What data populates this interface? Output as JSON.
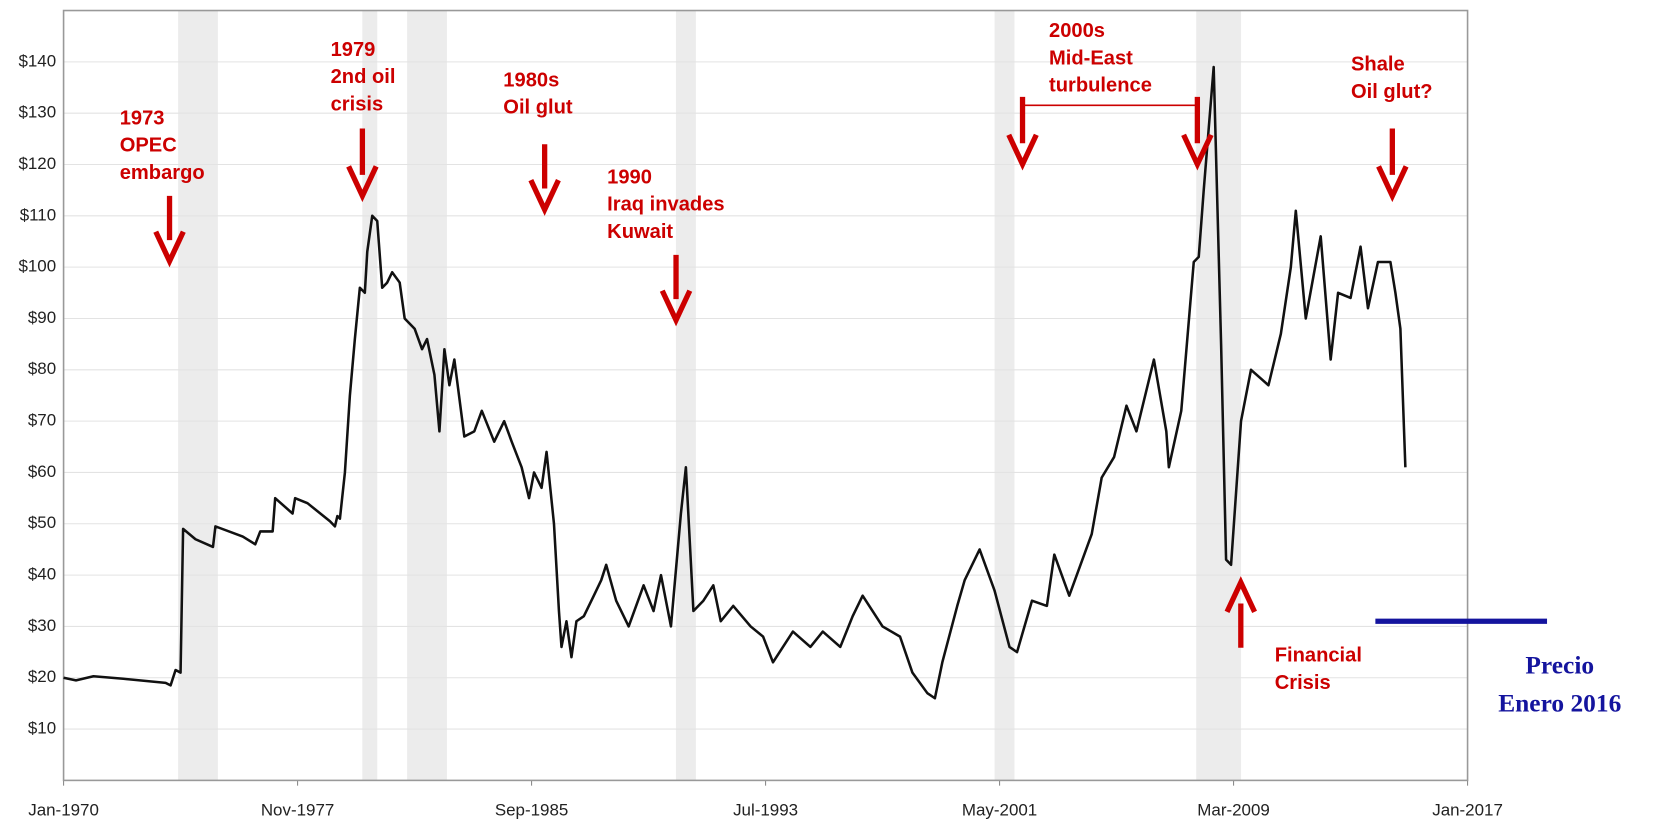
{
  "chart_data": {
    "type": "line",
    "x": [
      "1970-01",
      "1970-06",
      "1971-01",
      "1972-01",
      "1973-06",
      "1973-08",
      "1973-10",
      "1973-12",
      "1974-01",
      "1974-06",
      "1975-01",
      "1975-02",
      "1976-01",
      "1976-06",
      "1976-08",
      "1977-01",
      "1977-02",
      "1977-09",
      "1977-10",
      "1978-03",
      "1978-12",
      "1979-02",
      "1979-03",
      "1979-04",
      "1979-06",
      "1979-08",
      "1979-10",
      "1979-12",
      "1980-02",
      "1980-03",
      "1980-05",
      "1980-07",
      "1980-09",
      "1980-11",
      "1981-01",
      "1981-04",
      "1981-06",
      "1981-10",
      "1982-01",
      "1982-03",
      "1982-06",
      "1982-08",
      "1982-10",
      "1982-12",
      "1983-02",
      "1983-06",
      "1983-10",
      "1984-01",
      "1984-06",
      "1984-10",
      "1985-01",
      "1985-05",
      "1985-08",
      "1985-10",
      "1986-01",
      "1986-03",
      "1986-06",
      "1986-08",
      "1986-09",
      "1986-11",
      "1987-01",
      "1987-03",
      "1987-06",
      "1987-10",
      "1988-01",
      "1988-03",
      "1988-07",
      "1988-12",
      "1989-06",
      "1989-10",
      "1990-01",
      "1990-05",
      "1990-09",
      "1990-11",
      "1991-02",
      "1991-06",
      "1991-10",
      "1992-01",
      "1992-06",
      "1993-01",
      "1993-06",
      "1993-10",
      "1994-06",
      "1995-01",
      "1995-06",
      "1996-01",
      "1996-06",
      "1996-10",
      "1997-06",
      "1998-01",
      "1998-06",
      "1998-12",
      "1999-03",
      "1999-06",
      "1999-12",
      "2000-03",
      "2000-09",
      "2001-03",
      "2001-09",
      "2001-12",
      "2002-06",
      "2002-12",
      "2003-03",
      "2003-09",
      "2004-06",
      "2004-10",
      "2005-03",
      "2005-08",
      "2005-12",
      "2006-07",
      "2006-12",
      "2007-01",
      "2007-06",
      "2007-11",
      "2008-01",
      "2008-03",
      "2008-07",
      "2008-10",
      "2008-12",
      "2009-02",
      "2009-06",
      "2009-10",
      "2010-05",
      "2010-10",
      "2011-02",
      "2011-04",
      "2011-08",
      "2012-02",
      "2012-06",
      "2012-09",
      "2013-02",
      "2013-06",
      "2013-09",
      "2014-01",
      "2014-06",
      "2014-08",
      "2014-10",
      "2014-12"
    ],
    "series": [
      {
        "color": "#111111",
        "values": [
          20,
          19.5,
          20.3,
          19.8,
          19,
          18.5,
          21.5,
          21,
          49,
          47,
          45.5,
          49.5,
          47.5,
          46,
          48.5,
          48.5,
          55,
          52,
          55,
          54,
          50.5,
          49.5,
          51.5,
          51,
          60,
          75,
          86,
          96,
          95,
          103,
          110,
          109,
          96,
          97,
          99,
          97,
          90,
          88,
          84,
          86,
          79,
          68,
          84,
          77,
          82,
          67,
          68,
          72,
          66,
          70,
          66,
          61,
          55,
          60,
          57,
          64,
          50,
          33,
          26,
          31,
          24,
          31,
          32,
          36,
          39,
          42,
          35,
          30,
          38,
          33,
          40,
          30,
          52,
          61,
          33,
          35,
          38,
          31,
          34,
          30,
          28,
          23,
          29,
          26,
          29,
          26,
          32,
          36,
          30,
          28,
          21,
          17,
          16,
          23,
          34,
          39,
          45,
          37,
          26,
          25,
          35,
          34,
          44,
          36,
          48,
          59,
          63,
          73,
          68,
          82,
          68,
          61,
          72,
          101,
          102,
          115,
          139,
          85,
          43,
          42,
          70,
          80,
          77,
          87,
          100,
          111,
          90,
          106,
          82,
          95,
          94,
          104,
          92,
          101,
          101,
          95,
          88,
          61
        ]
      }
    ],
    "xlim": [
      "1970-01",
      "2017-01"
    ],
    "xticks": [
      {
        "value": "1970-01",
        "label": "Jan-1970"
      },
      {
        "value": "1977-11",
        "label": "Nov-1977"
      },
      {
        "value": "1985-09",
        "label": "Sep-1985"
      },
      {
        "value": "1993-07",
        "label": "Jul-1993"
      },
      {
        "value": "2001-05",
        "label": "May-2001"
      },
      {
        "value": "2009-03",
        "label": "Mar-2009"
      },
      {
        "value": "2017-01",
        "label": "Jan-2017"
      }
    ],
    "ylim": [
      0,
      150
    ],
    "yticks": [
      {
        "value": 10,
        "label": "$10"
      },
      {
        "value": 20,
        "label": "$20"
      },
      {
        "value": 30,
        "label": "$30"
      },
      {
        "value": 40,
        "label": "$40"
      },
      {
        "value": 50,
        "label": "$50"
      },
      {
        "value": 60,
        "label": "$60"
      },
      {
        "value": 70,
        "label": "$70"
      },
      {
        "value": 80,
        "label": "$80"
      },
      {
        "value": 90,
        "label": "$90"
      },
      {
        "value": 100,
        "label": "$100"
      },
      {
        "value": 110,
        "label": "$110"
      },
      {
        "value": 120,
        "label": "$120"
      },
      {
        "value": 130,
        "label": "$130"
      },
      {
        "value": 140,
        "label": "$140"
      }
    ],
    "grid": true,
    "recessions": [
      [
        "1973-11",
        "1975-03"
      ],
      [
        "1980-01",
        "1980-07"
      ],
      [
        "1981-07",
        "1982-11"
      ],
      [
        "1990-07",
        "1991-03"
      ],
      [
        "2001-03",
        "2001-11"
      ],
      [
        "2007-12",
        "2009-06"
      ]
    ],
    "recession_color": "#ececec",
    "annotations": [
      {
        "text": [
          "1973",
          "OPEC",
          "embargo"
        ]
      },
      {
        "text": [
          "1979",
          "2nd oil",
          "crisis"
        ]
      },
      {
        "text": [
          "1980s",
          "Oil glut"
        ]
      },
      {
        "text": [
          "1990",
          "Iraq invades",
          "Kuwait"
        ]
      },
      {
        "text": [
          "2000s",
          "Mid-East",
          "turbulence"
        ]
      },
      {
        "text": [
          "Shale",
          "Oil glut?"
        ]
      },
      {
        "text": [
          "Financial",
          "Crisis"
        ]
      }
    ],
    "annotation_color": "#cc0000",
    "reference": {
      "value": 31,
      "label": [
        "Precio",
        "Enero 2016"
      ],
      "color": "#14149e"
    }
  }
}
